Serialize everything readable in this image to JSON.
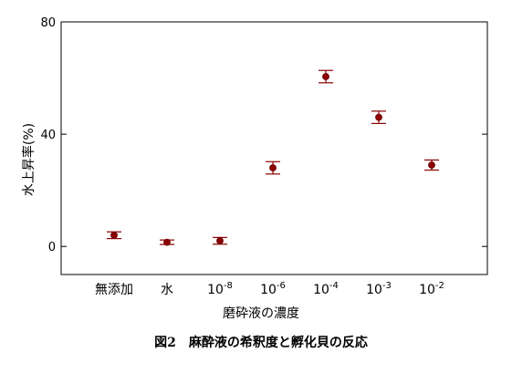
{
  "chart_data": {
    "type": "scatter",
    "categories": [
      "無添加",
      "水",
      "10^-8",
      "10^-6",
      "10^-4",
      "10^-3",
      "10^-2"
    ],
    "category_labels": [
      {
        "base": "無添加",
        "exp": ""
      },
      {
        "base": "水",
        "exp": ""
      },
      {
        "base": "10",
        "exp": "-8"
      },
      {
        "base": "10",
        "exp": "-6"
      },
      {
        "base": "10",
        "exp": "-4"
      },
      {
        "base": "10",
        "exp": "-3"
      },
      {
        "base": "10",
        "exp": "-2"
      }
    ],
    "values": [
      4.0,
      1.5,
      2.0,
      28.0,
      60.5,
      46.0,
      29.0
    ],
    "errors": [
      1.2,
      0.8,
      1.2,
      2.2,
      2.2,
      2.2,
      1.8
    ],
    "ylabel": "水上昇率(%)",
    "xlabel": "磨砕液の濃度",
    "ylim": [
      -10,
      80
    ],
    "yticks": [
      0,
      40,
      80
    ],
    "grid": false,
    "marker_color": "#8b0000",
    "errorbar_color": "#8b0000"
  },
  "caption": "図2　麻酔液の希釈度と孵化貝の反応"
}
